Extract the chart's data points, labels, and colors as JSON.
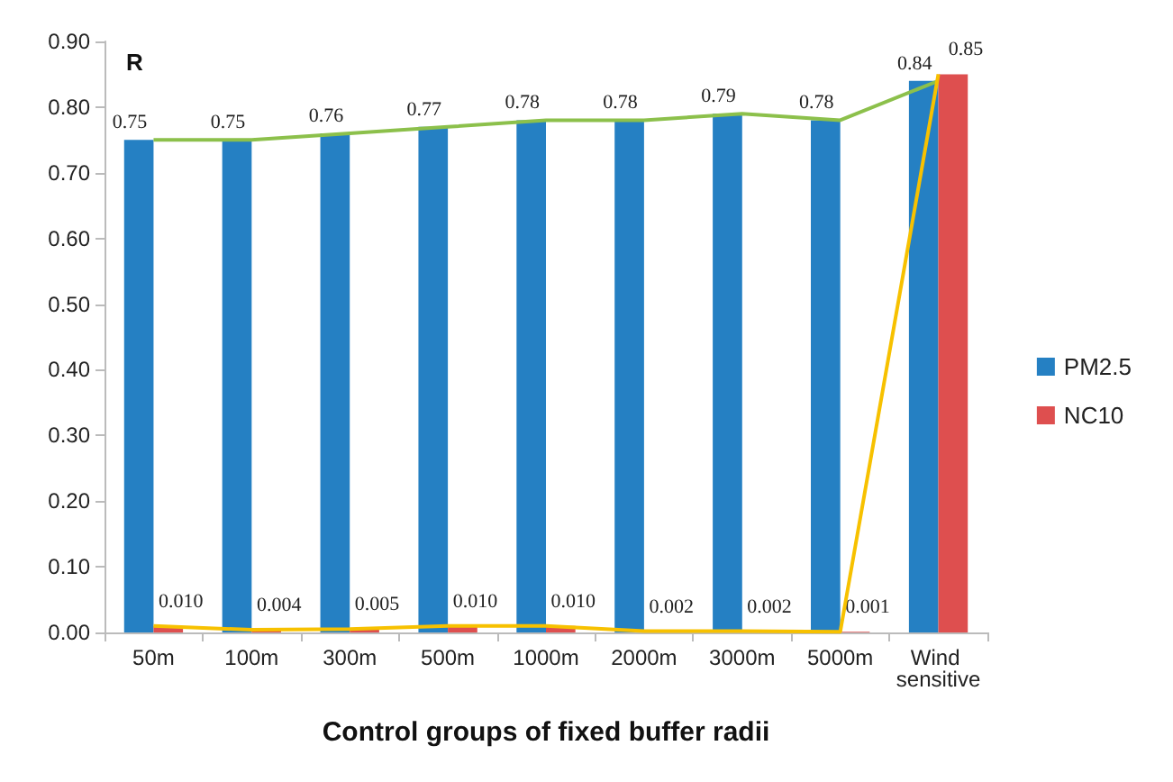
{
  "chart_data": {
    "type": "bar",
    "ylabel": "R",
    "xlabel": "Control groups of fixed buffer radii",
    "categories": [
      "50m",
      "100m",
      "300m",
      "500m",
      "1000m",
      "2000m",
      "3000m",
      "5000m",
      "Wind sensitive"
    ],
    "series": [
      {
        "name": "PM2.5",
        "color": "#2580c3",
        "values": [
          0.75,
          0.75,
          0.76,
          0.77,
          0.78,
          0.78,
          0.79,
          0.78,
          0.84
        ],
        "value_labels": [
          "0.75",
          "0.75",
          "0.76",
          "0.77",
          "0.78",
          "0.78",
          "0.79",
          "0.78",
          "0.84"
        ]
      },
      {
        "name": "NC10",
        "color": "#de4f4f",
        "values": [
          0.01,
          0.004,
          0.005,
          0.01,
          0.01,
          0.002,
          0.002,
          0.001,
          0.85
        ],
        "value_labels": [
          "0.010",
          "0.004",
          "0.005",
          "0.010",
          "0.010",
          "0.002",
          "0.002",
          "0.001",
          "0.85"
        ]
      },
      {
        "type": "line",
        "color": "#8cc04b",
        "values": [
          0.75,
          0.75,
          0.76,
          0.77,
          0.78,
          0.78,
          0.79,
          0.78,
          0.84
        ]
      },
      {
        "type": "line",
        "color": "#f7c100",
        "values": [
          0.01,
          0.004,
          0.005,
          0.01,
          0.01,
          0.002,
          0.002,
          0.001,
          0.85
        ]
      }
    ],
    "ylim": [
      0,
      0.9
    ],
    "yticks": [
      {
        "value": 0,
        "label": "0.00"
      },
      {
        "value": 0.1,
        "label": "0.10"
      },
      {
        "value": 0.2,
        "label": "0.20"
      },
      {
        "value": 0.3,
        "label": "0.30"
      },
      {
        "value": 0.4,
        "label": "0.40"
      },
      {
        "value": 0.5,
        "label": "0.50"
      },
      {
        "value": 0.6,
        "label": "0.60"
      },
      {
        "value": 0.7,
        "label": "0.70"
      },
      {
        "value": 0.8,
        "label": "0.80"
      },
      {
        "value": 0.9,
        "label": "0.90"
      }
    ],
    "grid": false,
    "legend": "right"
  }
}
